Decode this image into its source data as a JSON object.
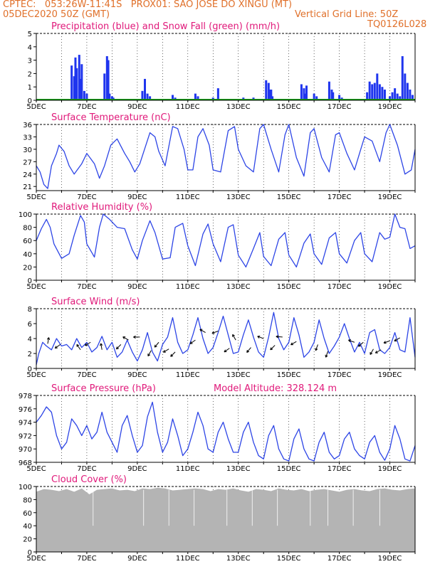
{
  "header": {
    "line1": "CPTEC:   053:26W-11:41S   PROX01: SAO JOSE DO XINGU (MT)",
    "line2_left": "05DEC2020 50Z (GMT)",
    "line2_right": "Vertical Grid Line: 50Z",
    "line3_right": "TQ0126L028"
  },
  "x_labels": [
    "5DEC",
    "7DEC",
    "9DEC",
    "11DEC",
    "13DEC",
    "15DEC",
    "17DEC",
    "19DEC"
  ],
  "colors": {
    "title": "#e0197a",
    "header": "#e0702a",
    "line": "#2d45e6",
    "precip": "#1f35ee",
    "snow": "#1aa01a",
    "cloud": "#b4b4b4"
  },
  "chart_data": [
    {
      "type": "bar",
      "title": "Precipitation (blue) and Snow Fall (green) (mm/h)",
      "ylim": [
        0,
        5
      ],
      "yticks": [
        0,
        1,
        2,
        3,
        4,
        5
      ],
      "x_range_days": [
        5,
        20
      ],
      "series": [
        {
          "name": "Precipitation",
          "x_days": [
            6.4,
            6.5,
            6.55,
            6.6,
            6.7,
            6.75,
            6.8,
            6.9,
            7.0,
            7.7,
            7.8,
            7.85,
            7.9,
            8.0,
            8.05,
            9.2,
            9.3,
            9.4,
            9.5,
            10.4,
            10.5,
            11.3,
            11.4,
            12.0,
            12.2,
            13.2,
            13.6,
            14.1,
            14.2,
            14.25,
            14.3,
            14.35,
            14.6,
            15.5,
            15.6,
            15.65,
            15.7,
            16.0,
            16.1,
            16.6,
            16.7,
            16.75,
            16.8,
            17.0,
            17.1,
            18.1,
            18.2,
            18.3,
            18.4,
            18.5,
            18.6,
            18.7,
            18.8,
            19.0,
            19.1,
            19.2,
            19.3,
            19.4,
            19.5,
            19.6,
            19.7,
            19.8,
            19.9
          ],
          "values": [
            2.6,
            1.8,
            3.2,
            2.4,
            3.4,
            1.6,
            2.7,
            0.7,
            0.5,
            2.0,
            3.3,
            3.0,
            0.5,
            0.3,
            0.2,
            0.7,
            1.6,
            0.5,
            0.3,
            0.4,
            0.2,
            0.5,
            0.3,
            0.2,
            0.9,
            0.2,
            0.2,
            1.5,
            1.3,
            0.8,
            0.8,
            0.3,
            0.1,
            1.2,
            0.9,
            0.5,
            1.1,
            0.5,
            0.3,
            1.4,
            0.8,
            0.6,
            0.1,
            0.4,
            0.2,
            0.6,
            1.4,
            1.2,
            1.3,
            2.0,
            1.2,
            1.0,
            0.8,
            0.3,
            0.6,
            0.9,
            0.5,
            0.3,
            3.3,
            2.0,
            1.3,
            0.8,
            0.4
          ]
        },
        {
          "name": "Snow Fall",
          "x_days": [
            5,
            20
          ],
          "values": [
            0,
            0
          ]
        }
      ]
    },
    {
      "type": "line",
      "title": "Surface Temperature (nC)",
      "ylim": [
        20,
        36
      ],
      "yticks": [
        21,
        24,
        27,
        30,
        33,
        36
      ],
      "series": [
        {
          "name": "Temperature",
          "x_days": [
            5.0,
            5.15,
            5.3,
            5.45,
            5.6,
            5.8,
            5.9,
            6.1,
            6.3,
            6.5,
            6.8,
            7.0,
            7.3,
            7.5,
            7.7,
            7.95,
            8.2,
            8.5,
            8.7,
            8.9,
            9.1,
            9.5,
            9.7,
            9.85,
            10.1,
            10.4,
            10.6,
            10.85,
            11.0,
            11.2,
            11.4,
            11.6,
            11.85,
            12.0,
            12.3,
            12.6,
            12.85,
            13.0,
            13.3,
            13.6,
            13.85,
            14.0,
            14.3,
            14.6,
            14.85,
            15.0,
            15.3,
            15.6,
            15.85,
            16.0,
            16.3,
            16.6,
            16.85,
            17.0,
            17.3,
            17.6,
            17.85,
            18.0,
            18.3,
            18.6,
            18.85,
            19.0,
            19.3,
            19.6,
            19.85,
            20.0
          ],
          "values": [
            26,
            24.5,
            21.5,
            20.5,
            26,
            29,
            31,
            29.5,
            26,
            24,
            26.5,
            29,
            26.5,
            23,
            26,
            31,
            32.5,
            29,
            27,
            24.5,
            26.5,
            34,
            33,
            29.5,
            26,
            35.5,
            35,
            30,
            25,
            25,
            33,
            35,
            31,
            25,
            24.5,
            34.5,
            35.5,
            30,
            26,
            24.5,
            35,
            36,
            30,
            24.5,
            33.5,
            36,
            28,
            23.5,
            34,
            35,
            28,
            24.5,
            33.5,
            34,
            29,
            25,
            30,
            33,
            32,
            27,
            34,
            36,
            31,
            24,
            25,
            30
          ]
        }
      ]
    },
    {
      "type": "line",
      "title": "Relative Humidity (%)",
      "ylim": [
        0,
        100
      ],
      "yticks": [
        0,
        20,
        40,
        60,
        80,
        100
      ],
      "series": [
        {
          "name": "Relative Humidity",
          "x_days": [
            5.0,
            5.2,
            5.4,
            5.55,
            5.7,
            6.0,
            6.3,
            6.5,
            6.75,
            6.9,
            7.0,
            7.3,
            7.5,
            7.65,
            7.9,
            8.2,
            8.5,
            8.8,
            9.0,
            9.2,
            9.5,
            9.7,
            10.0,
            10.3,
            10.5,
            10.8,
            11.0,
            11.3,
            11.6,
            11.8,
            12.0,
            12.3,
            12.6,
            12.8,
            13.0,
            13.3,
            13.6,
            13.85,
            14.0,
            14.3,
            14.6,
            14.85,
            15.0,
            15.3,
            15.6,
            15.85,
            16.0,
            16.3,
            16.6,
            16.85,
            17.0,
            17.3,
            17.6,
            17.85,
            18.0,
            18.3,
            18.6,
            18.8,
            19.0,
            19.2,
            19.4,
            19.6,
            19.8,
            20.0
          ],
          "values": [
            60,
            78,
            92,
            80,
            55,
            33,
            40,
            68,
            98,
            88,
            55,
            35,
            80,
            100,
            92,
            80,
            78,
            46,
            32,
            60,
            90,
            72,
            32,
            34,
            80,
            86,
            52,
            22,
            70,
            85,
            55,
            28,
            80,
            84,
            38,
            20,
            48,
            72,
            36,
            22,
            62,
            72,
            38,
            20,
            56,
            70,
            40,
            24,
            64,
            72,
            40,
            26,
            60,
            72,
            40,
            28,
            72,
            62,
            65,
            100,
            80,
            78,
            48,
            52
          ]
        }
      ]
    },
    {
      "type": "line",
      "title": "Surface Wind (m/s)",
      "ylim": [
        0,
        8
      ],
      "yticks": [
        0,
        2,
        4,
        6,
        8
      ],
      "series": [
        {
          "name": "Wind Speed",
          "x_days": [
            5.0,
            5.1,
            5.25,
            5.4,
            5.6,
            5.8,
            6.0,
            6.2,
            6.4,
            6.6,
            6.8,
            7.0,
            7.2,
            7.4,
            7.6,
            7.8,
            8.0,
            8.2,
            8.4,
            8.6,
            8.8,
            9.0,
            9.2,
            9.4,
            9.6,
            9.8,
            10.0,
            10.2,
            10.4,
            10.6,
            10.8,
            11.0,
            11.2,
            11.4,
            11.6,
            11.8,
            12.0,
            12.2,
            12.4,
            12.6,
            12.8,
            13.0,
            13.2,
            13.4,
            13.6,
            13.8,
            14.0,
            14.2,
            14.4,
            14.6,
            14.8,
            15.0,
            15.2,
            15.4,
            15.6,
            15.8,
            16.0,
            16.2,
            16.4,
            16.6,
            16.8,
            17.0,
            17.2,
            17.4,
            17.6,
            17.8,
            18.0,
            18.2,
            18.4,
            18.6,
            18.8,
            19.0,
            19.2,
            19.4,
            19.6,
            19.8,
            20.0
          ],
          "values": [
            0.5,
            2,
            3.5,
            3,
            2.5,
            4,
            3,
            3.2,
            2.5,
            4,
            2.8,
            3.5,
            2.2,
            2.8,
            4.3,
            2.5,
            3.5,
            1.5,
            2.2,
            3.8,
            2.2,
            1,
            2.5,
            4.8,
            2.2,
            1,
            3.2,
            4.2,
            6.8,
            3.5,
            2,
            2.5,
            4.5,
            6.8,
            4,
            2,
            2.8,
            4.8,
            7,
            4.5,
            2,
            2.2,
            4.5,
            6.5,
            4.2,
            2.2,
            1.5,
            4.2,
            7.5,
            4,
            2.5,
            3.5,
            6.8,
            4.5,
            1.5,
            2.2,
            3.5,
            6.5,
            4,
            2,
            3,
            4.2,
            6,
            4,
            2.2,
            3.5,
            2,
            4.8,
            5.2,
            2.5,
            2,
            2.8,
            4.8,
            2.5,
            2.2,
            6.8,
            1.5
          ]
        }
      ],
      "arrows": [
        {
          "x_days": 5.45,
          "speed": 3.3,
          "dir_deg": 80
        },
        {
          "x_days": 5.95,
          "speed": 3.2,
          "dir_deg": 215
        },
        {
          "x_days": 6.75,
          "speed": 2.5,
          "dir_deg": 125
        },
        {
          "x_days": 7.15,
          "speed": 3.5,
          "dir_deg": 210
        },
        {
          "x_days": 7.6,
          "speed": 2.5,
          "dir_deg": 100
        },
        {
          "x_days": 8.35,
          "speed": 3.2,
          "dir_deg": 225
        },
        {
          "x_days": 8.65,
          "speed": 3.8,
          "dir_deg": 150
        },
        {
          "x_days": 9.1,
          "speed": 4.2,
          "dir_deg": 180
        },
        {
          "x_days": 9.55,
          "speed": 2.4,
          "dir_deg": 240
        },
        {
          "x_days": 9.85,
          "speed": 3.5,
          "dir_deg": 230
        },
        {
          "x_days": 10.25,
          "speed": 2.6,
          "dir_deg": 210
        },
        {
          "x_days": 10.5,
          "speed": 2.2,
          "dir_deg": 225
        },
        {
          "x_days": 11.3,
          "speed": 3.8,
          "dir_deg": 215
        },
        {
          "x_days": 11.7,
          "speed": 4.8,
          "dir_deg": 150
        },
        {
          "x_days": 12.2,
          "speed": 5,
          "dir_deg": 200
        },
        {
          "x_days": 12.65,
          "speed": 2.7,
          "dir_deg": 215
        },
        {
          "x_days": 12.9,
          "speed": 3.8,
          "dir_deg": 120
        },
        {
          "x_days": 13.5,
          "speed": 2.8,
          "dir_deg": 230
        },
        {
          "x_days": 14.0,
          "speed": 4,
          "dir_deg": 160
        },
        {
          "x_days": 14.45,
          "speed": 3.1,
          "dir_deg": 225
        },
        {
          "x_days": 14.75,
          "speed": 4.2,
          "dir_deg": 175
        },
        {
          "x_days": 15.3,
          "speed": 3.6,
          "dir_deg": 210
        },
        {
          "x_days": 16.15,
          "speed": 3.2,
          "dir_deg": 250
        },
        {
          "x_days": 16.55,
          "speed": 2.3,
          "dir_deg": 250
        },
        {
          "x_days": 17.6,
          "speed": 3.5,
          "dir_deg": 160
        },
        {
          "x_days": 17.95,
          "speed": 3.5,
          "dir_deg": 220
        },
        {
          "x_days": 18.35,
          "speed": 2.6,
          "dir_deg": 240
        },
        {
          "x_days": 18.65,
          "speed": 2.5,
          "dir_deg": 210
        },
        {
          "x_days": 19.0,
          "speed": 3.7,
          "dir_deg": 200
        },
        {
          "x_days": 19.4,
          "speed": 4.1,
          "dir_deg": 210
        }
      ]
    },
    {
      "type": "line",
      "title": "Surface Pressure (hPa)",
      "annotation": "Model Altitude: 328.124  m",
      "ylim": [
        968,
        978
      ],
      "yticks": [
        968,
        970,
        972,
        974,
        976,
        978
      ],
      "series": [
        {
          "name": "Surface Pressure",
          "x_days": [
            5.0,
            5.2,
            5.4,
            5.6,
            5.8,
            6.0,
            6.2,
            6.4,
            6.6,
            6.8,
            7.0,
            7.2,
            7.4,
            7.6,
            7.8,
            8.0,
            8.2,
            8.4,
            8.6,
            8.8,
            9.0,
            9.2,
            9.4,
            9.6,
            9.8,
            10.0,
            10.2,
            10.4,
            10.6,
            10.8,
            11.0,
            11.2,
            11.4,
            11.6,
            11.8,
            12.0,
            12.2,
            12.4,
            12.6,
            12.8,
            13.0,
            13.2,
            13.4,
            13.6,
            13.8,
            14.0,
            14.2,
            14.4,
            14.6,
            14.8,
            15.0,
            15.2,
            15.4,
            15.6,
            15.8,
            16.0,
            16.2,
            16.4,
            16.6,
            16.8,
            17.0,
            17.2,
            17.4,
            17.6,
            17.8,
            18.0,
            18.2,
            18.4,
            18.6,
            18.8,
            19.0,
            19.2,
            19.4,
            19.6,
            19.8,
            20.0
          ],
          "values": [
            974,
            975,
            976.3,
            975.5,
            972,
            970,
            971,
            974.5,
            973.5,
            972,
            973.5,
            971.5,
            972.5,
            975.5,
            972.5,
            971,
            969.5,
            973.5,
            975,
            972,
            969.5,
            970.5,
            974.8,
            977,
            972.5,
            969.5,
            971,
            974.5,
            972,
            969,
            970,
            972.5,
            975.5,
            973.5,
            970,
            969.5,
            972.5,
            974,
            971.5,
            969.5,
            969.5,
            972.5,
            974,
            971,
            969,
            968.5,
            972,
            973.5,
            970,
            968.5,
            968.2,
            971.5,
            973,
            970,
            968.5,
            968.2,
            971,
            972.5,
            969.5,
            968.5,
            969,
            971.5,
            972.5,
            970,
            969,
            968.5,
            971,
            972,
            969.5,
            968.3,
            970,
            973.5,
            971.5,
            968.5,
            968.2,
            970.5
          ]
        }
      ]
    },
    {
      "type": "area",
      "title": "Cloud Cover (%)",
      "ylim": [
        0,
        100
      ],
      "yticks": [
        0,
        20,
        40,
        60,
        80,
        100
      ],
      "series": [
        {
          "name": "Cloud Cover",
          "x_days": [
            5.0,
            5.3,
            5.6,
            5.9,
            6.2,
            6.5,
            6.8,
            7.1,
            7.4,
            7.7,
            8.0,
            8.3,
            8.6,
            8.9,
            9.2,
            9.5,
            9.8,
            10.1,
            10.4,
            10.7,
            11.0,
            11.3,
            11.6,
            11.9,
            12.2,
            12.5,
            12.8,
            13.1,
            13.4,
            13.7,
            14.0,
            14.3,
            14.6,
            14.9,
            15.2,
            15.5,
            15.8,
            16.1,
            16.4,
            16.7,
            17.0,
            17.3,
            17.6,
            17.9,
            18.2,
            18.5,
            18.8,
            19.1,
            19.4,
            19.7,
            20.0
          ],
          "values": [
            92,
            96,
            95,
            93,
            96,
            92,
            97,
            88,
            95,
            96,
            97,
            94,
            95,
            93,
            97,
            96,
            98,
            97,
            94,
            95,
            96,
            97,
            96,
            93,
            96,
            95,
            97,
            94,
            92,
            96,
            95,
            93,
            97,
            95,
            94,
            96,
            93,
            95,
            96,
            94,
            92,
            95,
            96,
            94,
            93,
            96,
            97,
            95,
            94,
            96,
            97
          ]
        }
      ]
    }
  ]
}
